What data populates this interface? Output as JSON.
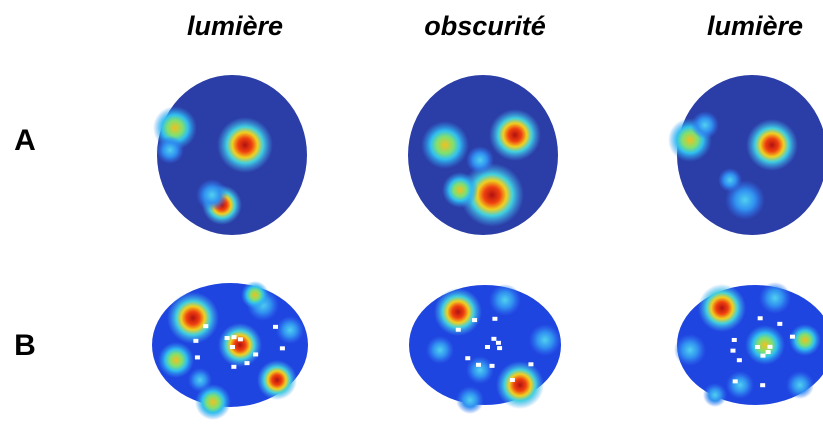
{
  "columns": [
    "lumière",
    "obscurité",
    "lumière"
  ],
  "rows": [
    "A",
    "B"
  ]
}
